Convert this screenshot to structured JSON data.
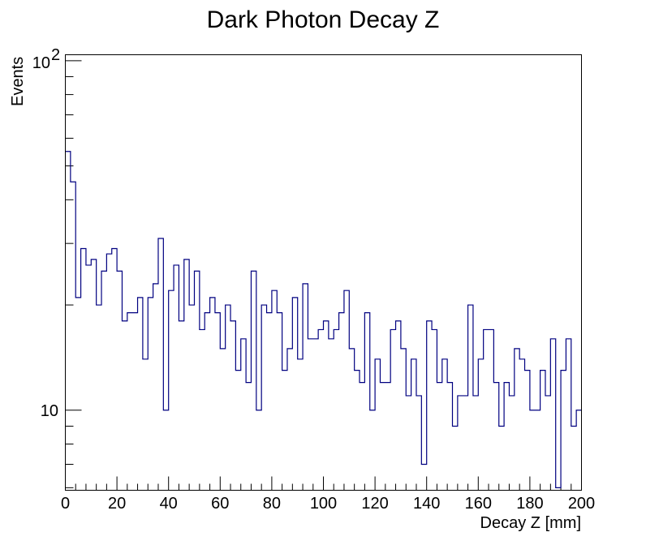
{
  "chart_data": {
    "type": "histogram",
    "title": "Dark Photon Decay Z",
    "xlabel": "Decay Z [mm]",
    "ylabel": "Events",
    "xlim": [
      0,
      200
    ],
    "ylim": [
      5.9,
      104
    ],
    "yscale": "log",
    "bin_width": 2,
    "x_ticks": [
      0,
      20,
      40,
      60,
      80,
      100,
      120,
      140,
      160,
      180,
      200
    ],
    "x_tick_labels": [
      "0",
      "20",
      "40",
      "60",
      "80",
      "100",
      "120",
      "140",
      "160",
      "180",
      "200"
    ],
    "y_tick_labels": {
      "major_10": "10",
      "major_100_base": "10",
      "major_100_exp": "2"
    },
    "series": [
      {
        "name": "Decay Z",
        "color": "#000080",
        "bin_edges_start": 0,
        "values": [
          55,
          45,
          21,
          29,
          26,
          27,
          20,
          25,
          28,
          29,
          25,
          18,
          19,
          19,
          21,
          14,
          21,
          23,
          31,
          10,
          22,
          26,
          18,
          27,
          20,
          25,
          17,
          19,
          21,
          19,
          15,
          20,
          18,
          13,
          16,
          12,
          25,
          10,
          20,
          19,
          22,
          19,
          13,
          15,
          21,
          14,
          23,
          16,
          16,
          17,
          18,
          16,
          17,
          19,
          22,
          15,
          13,
          12,
          19,
          10,
          14,
          12,
          12,
          17,
          18,
          15,
          11,
          14,
          11,
          7,
          18,
          17,
          12,
          14,
          12,
          9,
          11,
          11,
          20,
          11,
          14,
          17,
          17,
          12,
          9,
          12,
          11,
          15,
          14,
          13,
          10,
          10,
          13,
          11,
          16,
          6,
          13,
          16,
          9,
          10
        ]
      }
    ]
  }
}
